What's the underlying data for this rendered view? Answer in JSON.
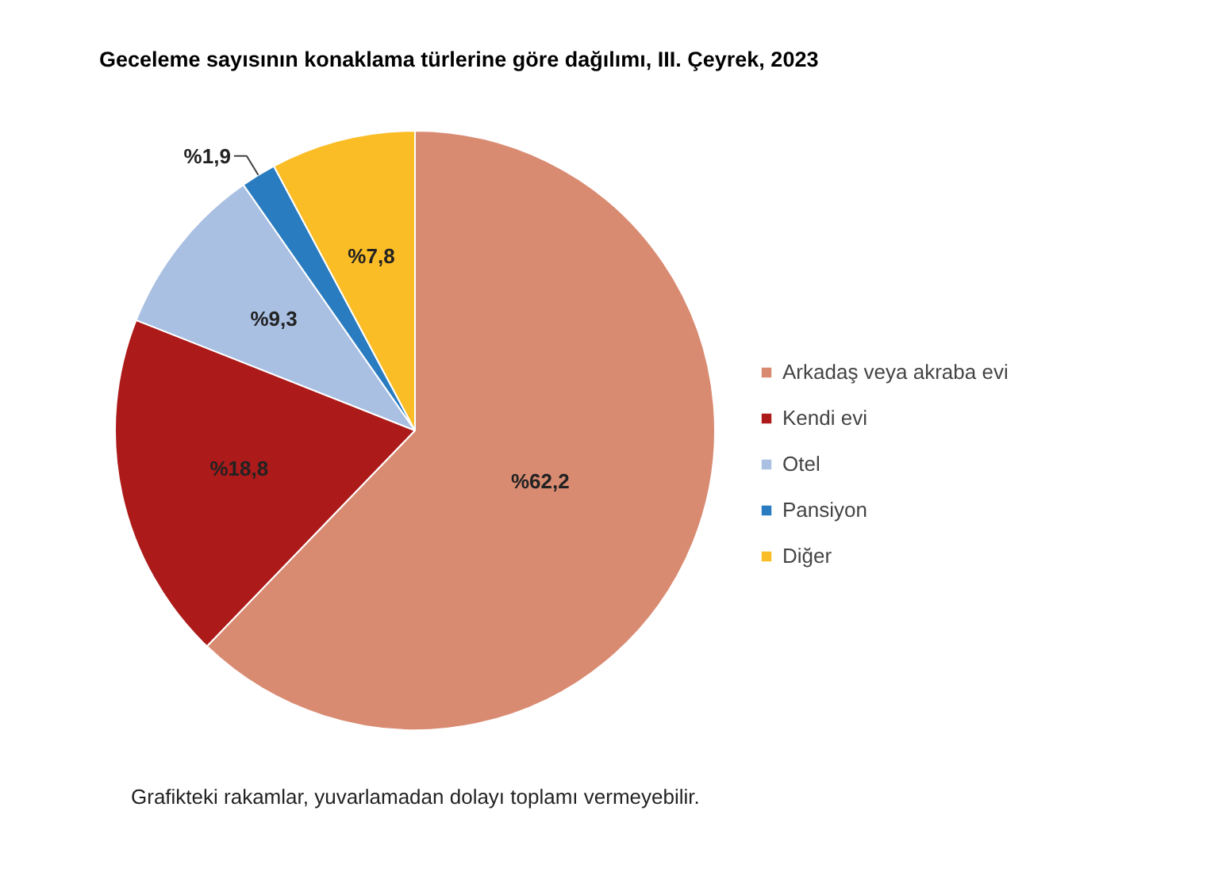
{
  "chart_data": {
    "type": "pie",
    "title": "Geceleme sayısının konaklama türlerine göre dağılımı, III. Çeyrek, 2023",
    "categories": [
      "Arkadaş veya akraba evi",
      "Kendi evi",
      "Otel",
      "Pansiyon",
      "Diğer"
    ],
    "values": [
      62.2,
      18.8,
      9.3,
      1.9,
      7.8
    ],
    "colors": [
      "#d98b72",
      "#ad1a1a",
      "#a9c0e3",
      "#2a7cc0",
      "#fbbd26"
    ],
    "value_labels": [
      "%62,2",
      "%18,8",
      "%9,3",
      "%1,9",
      "%7,8"
    ],
    "legend": "right",
    "annotations": [
      "Grafikteki rakamlar, yuvarlamadan dolayı toplamı vermeyebilir."
    ]
  }
}
